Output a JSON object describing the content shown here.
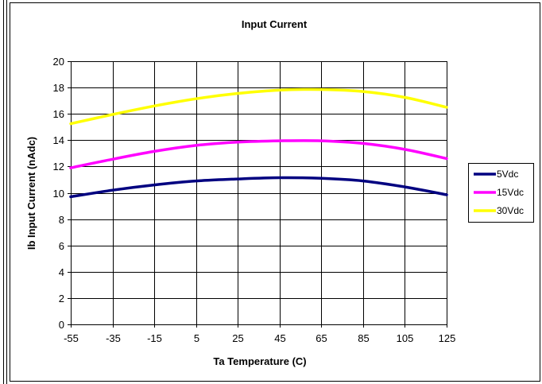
{
  "chart_data": {
    "type": "line",
    "title": "Input Current",
    "xlabel": "Ta  Temperature (C)",
    "ylabel": "Ib  Input Current (nAdc)",
    "xlim": [
      -55,
      125
    ],
    "ylim": [
      0,
      20
    ],
    "x_ticks": [
      -55,
      -35,
      -15,
      5,
      25,
      45,
      65,
      85,
      105,
      125
    ],
    "y_ticks": [
      0,
      2,
      4,
      6,
      8,
      10,
      12,
      14,
      16,
      18,
      20
    ],
    "grid": true,
    "legend_position": "right",
    "x": [
      -55,
      -35,
      -15,
      5,
      25,
      45,
      65,
      85,
      105,
      125
    ],
    "series": [
      {
        "name": "5Vdc",
        "color": "#000080",
        "values": [
          9.7,
          10.2,
          10.6,
          10.9,
          11.05,
          11.15,
          11.1,
          10.9,
          10.45,
          9.85
        ]
      },
      {
        "name": "15Vdc",
        "color": "#ff00ff",
        "values": [
          11.9,
          12.55,
          13.15,
          13.6,
          13.85,
          13.95,
          13.95,
          13.75,
          13.3,
          12.6
        ]
      },
      {
        "name": "30Vdc",
        "color": "#ffff00",
        "values": [
          15.25,
          15.95,
          16.6,
          17.15,
          17.55,
          17.8,
          17.85,
          17.7,
          17.25,
          16.5
        ]
      }
    ]
  }
}
